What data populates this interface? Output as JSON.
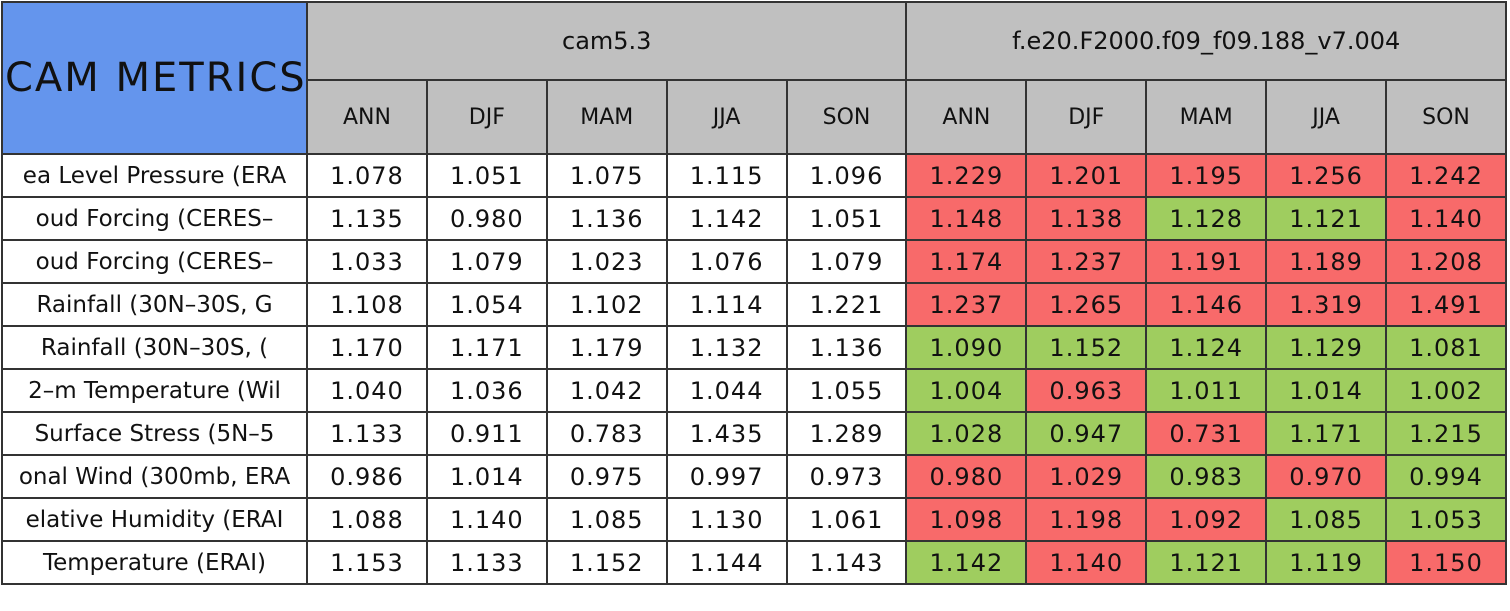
{
  "header": {
    "title": "CAM METRICS",
    "groups": [
      {
        "name": "cam5.3",
        "seasons": [
          "ANN",
          "DJF",
          "MAM",
          "JJA",
          "SON"
        ]
      },
      {
        "name": "f.e20.F2000.f09_f09.188_v7.004",
        "seasons": [
          "ANN",
          "DJF",
          "MAM",
          "JJA",
          "SON"
        ]
      }
    ]
  },
  "table": {
    "rows": [
      {
        "label": "ea Level Pressure (ERA",
        "values": [
          "1.078",
          "1.051",
          "1.075",
          "1.115",
          "1.096",
          "1.229",
          "1.201",
          "1.195",
          "1.256",
          "1.242"
        ],
        "colors": [
          "#ffffff",
          "#ffffff",
          "#ffffff",
          "#ffffff",
          "#ffffff",
          "#f86a6a",
          "#f86a6a",
          "#f86a6a",
          "#f86a6a",
          "#f86a6a"
        ]
      },
      {
        "label": "oud Forcing (CERES–",
        "values": [
          "1.135",
          "0.980",
          "1.136",
          "1.142",
          "1.051",
          "1.148",
          "1.138",
          "1.128",
          "1.121",
          "1.140"
        ],
        "colors": [
          "#ffffff",
          "#ffffff",
          "#ffffff",
          "#ffffff",
          "#ffffff",
          "#f86a6a",
          "#f86a6a",
          "#9fcd5f",
          "#9fcd5f",
          "#f86a6a"
        ]
      },
      {
        "label": "oud Forcing (CERES–",
        "values": [
          "1.033",
          "1.079",
          "1.023",
          "1.076",
          "1.079",
          "1.174",
          "1.237",
          "1.191",
          "1.189",
          "1.208"
        ],
        "colors": [
          "#ffffff",
          "#ffffff",
          "#ffffff",
          "#ffffff",
          "#ffffff",
          "#f86a6a",
          "#f86a6a",
          "#f86a6a",
          "#f86a6a",
          "#f86a6a"
        ]
      },
      {
        "label": "Rainfall (30N–30S, G",
        "values": [
          "1.108",
          "1.054",
          "1.102",
          "1.114",
          "1.221",
          "1.237",
          "1.265",
          "1.146",
          "1.319",
          "1.491"
        ],
        "colors": [
          "#ffffff",
          "#ffffff",
          "#ffffff",
          "#ffffff",
          "#ffffff",
          "#f86a6a",
          "#f86a6a",
          "#f86a6a",
          "#f86a6a",
          "#f86a6a"
        ]
      },
      {
        "label": "Rainfall (30N–30S, (",
        "values": [
          "1.170",
          "1.171",
          "1.179",
          "1.132",
          "1.136",
          "1.090",
          "1.152",
          "1.124",
          "1.129",
          "1.081"
        ],
        "colors": [
          "#ffffff",
          "#ffffff",
          "#ffffff",
          "#ffffff",
          "#ffffff",
          "#9fcd5f",
          "#9fcd5f",
          "#9fcd5f",
          "#9fcd5f",
          "#9fcd5f"
        ]
      },
      {
        "label": "2–m Temperature (Wil",
        "values": [
          "1.040",
          "1.036",
          "1.042",
          "1.044",
          "1.055",
          "1.004",
          "0.963",
          "1.011",
          "1.014",
          "1.002"
        ],
        "colors": [
          "#ffffff",
          "#ffffff",
          "#ffffff",
          "#ffffff",
          "#ffffff",
          "#9fcd5f",
          "#f86a6a",
          "#9fcd5f",
          "#9fcd5f",
          "#9fcd5f"
        ]
      },
      {
        "label": "Surface Stress (5N–5",
        "values": [
          "1.133",
          "0.911",
          "0.783",
          "1.435",
          "1.289",
          "1.028",
          "0.947",
          "0.731",
          "1.171",
          "1.215"
        ],
        "colors": [
          "#ffffff",
          "#ffffff",
          "#ffffff",
          "#ffffff",
          "#ffffff",
          "#9fcd5f",
          "#9fcd5f",
          "#f86a6a",
          "#9fcd5f",
          "#9fcd5f"
        ]
      },
      {
        "label": "onal Wind (300mb, ERA",
        "values": [
          "0.986",
          "1.014",
          "0.975",
          "0.997",
          "0.973",
          "0.980",
          "1.029",
          "0.983",
          "0.970",
          "0.994"
        ],
        "colors": [
          "#ffffff",
          "#ffffff",
          "#ffffff",
          "#ffffff",
          "#ffffff",
          "#f86a6a",
          "#f86a6a",
          "#9fcd5f",
          "#f86a6a",
          "#9fcd5f"
        ]
      },
      {
        "label": "elative Humidity (ERAI",
        "values": [
          "1.088",
          "1.140",
          "1.085",
          "1.130",
          "1.061",
          "1.098",
          "1.198",
          "1.092",
          "1.085",
          "1.053"
        ],
        "colors": [
          "#ffffff",
          "#ffffff",
          "#ffffff",
          "#ffffff",
          "#ffffff",
          "#f86a6a",
          "#f86a6a",
          "#f86a6a",
          "#9fcd5f",
          "#9fcd5f"
        ]
      },
      {
        "label": "Temperature (ERAI)",
        "values": [
          "1.153",
          "1.133",
          "1.152",
          "1.144",
          "1.143",
          "1.142",
          "1.140",
          "1.121",
          "1.119",
          "1.150"
        ],
        "colors": [
          "#ffffff",
          "#ffffff",
          "#ffffff",
          "#ffffff",
          "#ffffff",
          "#9fcd5f",
          "#f86a6a",
          "#9fcd5f",
          "#9fcd5f",
          "#f86a6a"
        ]
      }
    ]
  }
}
